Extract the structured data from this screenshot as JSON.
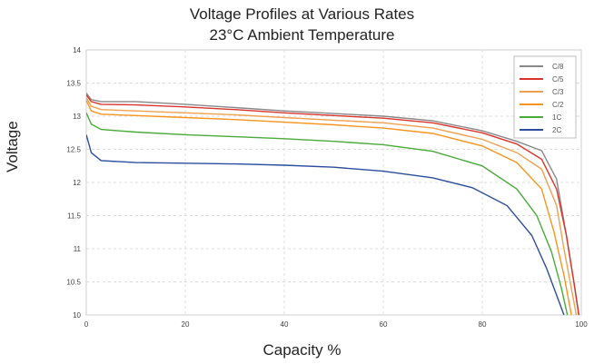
{
  "chart_data": {
    "type": "line",
    "title": "Voltage Profiles at Various Rates",
    "subtitle": "23°C Ambient Temperature",
    "xlabel": "Capacity %",
    "ylabel": "Voltage",
    "xlim": [
      0,
      100
    ],
    "ylim": [
      10,
      14
    ],
    "x_ticks": [
      "0",
      "20",
      "40",
      "60",
      "80",
      "100"
    ],
    "y_ticks": [
      "10",
      "10.5",
      "11",
      "11.5",
      "12",
      "12.5",
      "13",
      "13.5",
      "14"
    ],
    "grid": true,
    "legend_position": "top-right",
    "series": [
      {
        "name": "C/8",
        "color": "#888888",
        "points": [
          [
            0,
            13.35
          ],
          [
            1,
            13.25
          ],
          [
            3,
            13.22
          ],
          [
            10,
            13.22
          ],
          [
            20,
            13.18
          ],
          [
            30,
            13.13
          ],
          [
            40,
            13.08
          ],
          [
            50,
            13.04
          ],
          [
            60,
            13.0
          ],
          [
            70,
            12.93
          ],
          [
            80,
            12.78
          ],
          [
            87,
            12.62
          ],
          [
            92,
            12.48
          ],
          [
            95,
            12.05
          ],
          [
            97,
            11.2
          ],
          [
            98.5,
            10.5
          ],
          [
            99.5,
            10.0
          ]
        ]
      },
      {
        "name": "C/5",
        "color": "#d9342b",
        "points": [
          [
            0,
            13.32
          ],
          [
            1,
            13.22
          ],
          [
            3,
            13.18
          ],
          [
            10,
            13.17
          ],
          [
            20,
            13.14
          ],
          [
            30,
            13.1
          ],
          [
            40,
            13.05
          ],
          [
            50,
            13.01
          ],
          [
            60,
            12.97
          ],
          [
            70,
            12.9
          ],
          [
            80,
            12.75
          ],
          [
            87,
            12.58
          ],
          [
            92,
            12.35
          ],
          [
            95,
            11.9
          ],
          [
            97,
            11.2
          ],
          [
            98.5,
            10.5
          ],
          [
            99.5,
            10.0
          ]
        ]
      },
      {
        "name": "C/3",
        "color": "#f0a050",
        "points": [
          [
            0,
            13.28
          ],
          [
            1,
            13.15
          ],
          [
            3,
            13.1
          ],
          [
            10,
            13.08
          ],
          [
            20,
            13.05
          ],
          [
            30,
            13.02
          ],
          [
            40,
            12.98
          ],
          [
            50,
            12.94
          ],
          [
            60,
            12.9
          ],
          [
            70,
            12.82
          ],
          [
            80,
            12.65
          ],
          [
            87,
            12.45
          ],
          [
            92,
            12.2
          ],
          [
            95,
            11.65
          ],
          [
            96.5,
            11.0
          ],
          [
            98,
            10.4
          ],
          [
            99,
            10.0
          ]
        ]
      },
      {
        "name": "C/2",
        "color": "#f7941d",
        "points": [
          [
            0,
            13.24
          ],
          [
            1,
            13.08
          ],
          [
            3,
            13.03
          ],
          [
            10,
            13.01
          ],
          [
            20,
            12.98
          ],
          [
            30,
            12.95
          ],
          [
            40,
            12.91
          ],
          [
            50,
            12.87
          ],
          [
            60,
            12.82
          ],
          [
            70,
            12.74
          ],
          [
            80,
            12.55
          ],
          [
            87,
            12.3
          ],
          [
            92,
            11.9
          ],
          [
            94.5,
            11.25
          ],
          [
            96.5,
            10.6
          ],
          [
            98,
            10.0
          ]
        ]
      },
      {
        "name": "1C",
        "color": "#4aaa3a",
        "points": [
          [
            0,
            13.05
          ],
          [
            1,
            12.88
          ],
          [
            3,
            12.8
          ],
          [
            10,
            12.76
          ],
          [
            20,
            12.72
          ],
          [
            30,
            12.69
          ],
          [
            40,
            12.66
          ],
          [
            50,
            12.62
          ],
          [
            60,
            12.57
          ],
          [
            70,
            12.47
          ],
          [
            80,
            12.25
          ],
          [
            87,
            11.9
          ],
          [
            91,
            11.5
          ],
          [
            94,
            10.95
          ],
          [
            96,
            10.4
          ],
          [
            97.2,
            10.0
          ]
        ]
      },
      {
        "name": "2C",
        "color": "#2c4d9e",
        "points": [
          [
            0,
            12.72
          ],
          [
            1,
            12.45
          ],
          [
            3,
            12.33
          ],
          [
            10,
            12.3
          ],
          [
            20,
            12.29
          ],
          [
            30,
            12.28
          ],
          [
            40,
            12.26
          ],
          [
            50,
            12.23
          ],
          [
            60,
            12.17
          ],
          [
            70,
            12.07
          ],
          [
            78,
            11.92
          ],
          [
            85,
            11.65
          ],
          [
            90,
            11.2
          ],
          [
            93,
            10.7
          ],
          [
            95.5,
            10.2
          ],
          [
            96.5,
            10.0
          ]
        ]
      }
    ]
  }
}
